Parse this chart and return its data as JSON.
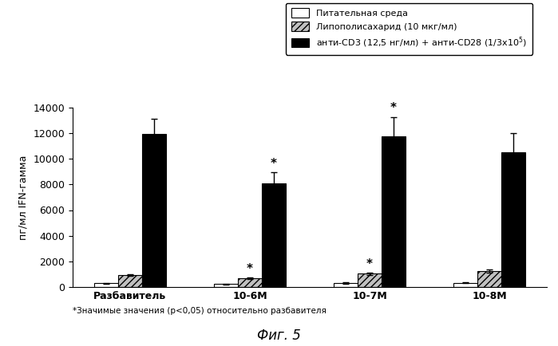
{
  "categories": [
    "Разбавитель",
    "10-6М",
    "10-7М",
    "10-8М"
  ],
  "series": {
    "medium": {
      "label": "Питательная среда",
      "values": [
        300,
        250,
        350,
        350
      ],
      "errors": [
        50,
        40,
        60,
        50
      ],
      "color": "white",
      "edgecolor": "black",
      "hatch": ""
    },
    "lps": {
      "label": "Липополисахарид (10 мкг/мл)",
      "values": [
        950,
        700,
        1050,
        1250
      ],
      "errors": [
        80,
        70,
        100,
        100
      ],
      "color": "#c0c0c0",
      "edgecolor": "black",
      "hatch": "////"
    },
    "anti": {
      "label": "анти-CD3 (12,5 нг/мл) + анти-CD28 (1/3х10$^5$)",
      "values": [
        11900,
        8100,
        11750,
        10500
      ],
      "errors": [
        1200,
        850,
        1500,
        1500
      ],
      "color": "black",
      "edgecolor": "black",
      "hatch": ""
    }
  },
  "ylabel": "пг/мл IFN-гамма",
  "ylim": [
    0,
    14000
  ],
  "yticks": [
    0,
    2000,
    4000,
    6000,
    8000,
    10000,
    12000,
    14000
  ],
  "footnote": "*Значимые значения (р<0,05) относительно разбавителя",
  "fig_label": "Фиг. 5",
  "background_color": "white"
}
